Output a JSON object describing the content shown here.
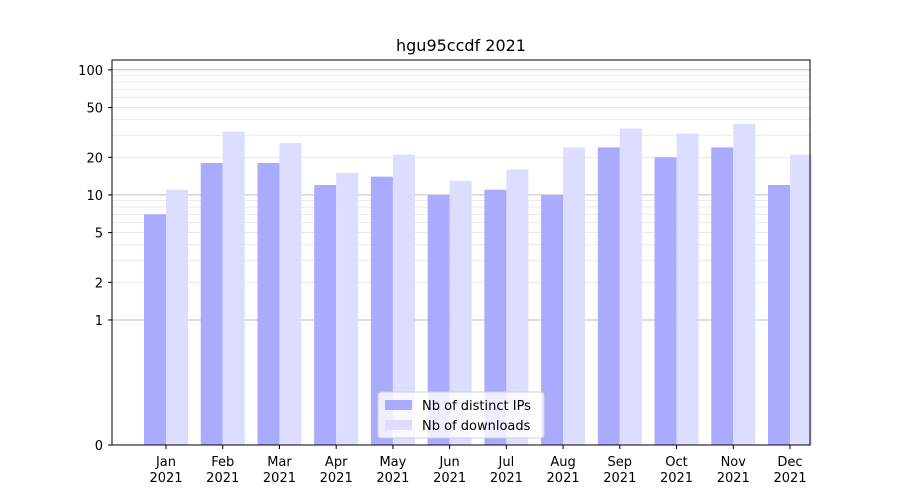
{
  "chart_data": {
    "type": "bar",
    "title": "hgu95ccdf 2021",
    "xlabel": "",
    "ylabel": "",
    "yscale": "symlog",
    "yticks": [
      0,
      1,
      2,
      5,
      10,
      20,
      50,
      100
    ],
    "ylim": [
      0,
      120
    ],
    "categories": [
      {
        "month": "Jan",
        "year": "2021"
      },
      {
        "month": "Feb",
        "year": "2021"
      },
      {
        "month": "Mar",
        "year": "2021"
      },
      {
        "month": "Apr",
        "year": "2021"
      },
      {
        "month": "May",
        "year": "2021"
      },
      {
        "month": "Jun",
        "year": "2021"
      },
      {
        "month": "Jul",
        "year": "2021"
      },
      {
        "month": "Aug",
        "year": "2021"
      },
      {
        "month": "Sep",
        "year": "2021"
      },
      {
        "month": "Oct",
        "year": "2021"
      },
      {
        "month": "Nov",
        "year": "2021"
      },
      {
        "month": "Dec",
        "year": "2021"
      }
    ],
    "series": [
      {
        "name": "Nb of distinct IPs",
        "color": "#aaaaff",
        "values": [
          7,
          18,
          18,
          12,
          14,
          10,
          11,
          10,
          24,
          20,
          24,
          12
        ]
      },
      {
        "name": "Nb of downloads",
        "color": "#ddddff",
        "values": [
          11,
          32,
          26,
          15,
          21,
          13,
          16,
          24,
          34,
          31,
          37,
          21
        ]
      }
    ],
    "legend_position": "bottom-center",
    "grid": true
  }
}
